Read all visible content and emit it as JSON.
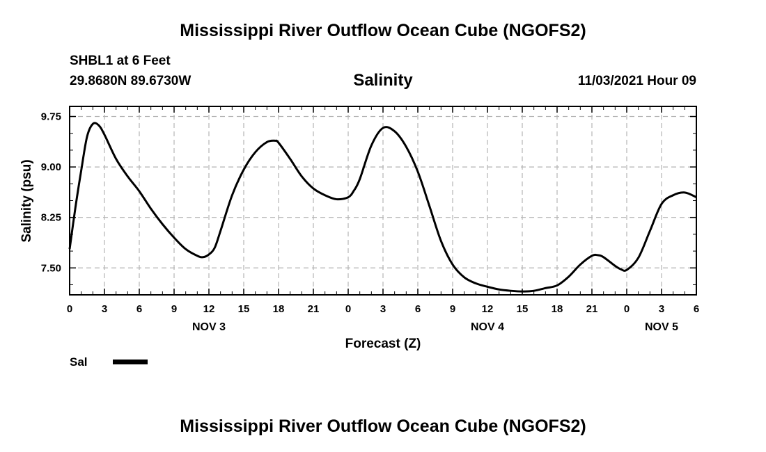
{
  "titles": {
    "top": "Mississippi River Outflow Ocean Cube (NGOFS2)",
    "bottom": "Mississippi River Outflow Ocean Cube (NGOFS2)"
  },
  "station": {
    "name": "SHBL1 at 6 Feet",
    "coords": "29.8680N  89.6730W"
  },
  "product": "Salinity",
  "timestamp": "11/03/2021 Hour 09",
  "legend": {
    "label": "Sal"
  },
  "chart_data": {
    "type": "line",
    "title": "Salinity",
    "xlabel": "Forecast (Z)",
    "ylabel": "Salinity (psu)",
    "ylim": [
      7.1,
      9.9
    ],
    "xlim": [
      0,
      54
    ],
    "x_unit": "hours since 11/03/2021 00Z",
    "grid": true,
    "y_ticks": [
      {
        "value": 7.5,
        "label": "7.50"
      },
      {
        "value": 8.25,
        "label": "8.25"
      },
      {
        "value": 9.0,
        "label": "9.00"
      },
      {
        "value": 9.75,
        "label": "9.75"
      }
    ],
    "x_ticks": [
      {
        "value": 0,
        "label": "0"
      },
      {
        "value": 3,
        "label": "3"
      },
      {
        "value": 6,
        "label": "6"
      },
      {
        "value": 9,
        "label": "9"
      },
      {
        "value": 12,
        "label": "12"
      },
      {
        "value": 15,
        "label": "15"
      },
      {
        "value": 18,
        "label": "18"
      },
      {
        "value": 21,
        "label": "21"
      },
      {
        "value": 24,
        "label": "0"
      },
      {
        "value": 27,
        "label": "3"
      },
      {
        "value": 30,
        "label": "6"
      },
      {
        "value": 33,
        "label": "9"
      },
      {
        "value": 36,
        "label": "12"
      },
      {
        "value": 39,
        "label": "15"
      },
      {
        "value": 42,
        "label": "18"
      },
      {
        "value": 45,
        "label": "21"
      },
      {
        "value": 48,
        "label": "0"
      },
      {
        "value": 51,
        "label": "3"
      },
      {
        "value": 54,
        "label": "6"
      }
    ],
    "date_labels": [
      {
        "value": 12,
        "label": "NOV 3"
      },
      {
        "value": 36,
        "label": "NOV 4"
      },
      {
        "value": 51,
        "label": "NOV 5"
      }
    ],
    "series": [
      {
        "name": "Sal",
        "x": [
          0,
          0.5,
          1,
          1.5,
          2,
          2.5,
          3,
          4,
          5,
          6,
          7,
          8,
          9,
          10,
          11,
          11.5,
          12,
          12.5,
          13,
          14,
          15,
          16,
          17,
          17.7,
          18,
          19,
          20,
          21,
          22,
          23,
          24,
          24.5,
          25,
          26,
          27,
          28,
          29,
          30,
          31,
          32,
          33,
          34,
          35,
          36,
          37,
          38,
          39,
          40,
          41,
          42,
          43,
          44,
          45,
          45.5,
          46,
          47,
          47.5,
          48,
          49,
          50,
          51,
          52,
          53,
          54
        ],
        "y": [
          7.78,
          8.4,
          8.95,
          9.45,
          9.64,
          9.62,
          9.48,
          9.12,
          8.86,
          8.64,
          8.38,
          8.15,
          7.95,
          7.78,
          7.68,
          7.66,
          7.7,
          7.8,
          8.05,
          8.58,
          8.96,
          9.22,
          9.37,
          9.39,
          9.36,
          9.12,
          8.86,
          8.68,
          8.58,
          8.52,
          8.55,
          8.65,
          8.82,
          9.32,
          9.58,
          9.53,
          9.3,
          8.93,
          8.42,
          7.9,
          7.55,
          7.36,
          7.27,
          7.22,
          7.18,
          7.16,
          7.15,
          7.16,
          7.2,
          7.24,
          7.37,
          7.55,
          7.68,
          7.69,
          7.66,
          7.53,
          7.48,
          7.47,
          7.65,
          8.05,
          8.45,
          8.58,
          8.62,
          8.55
        ]
      }
    ]
  }
}
